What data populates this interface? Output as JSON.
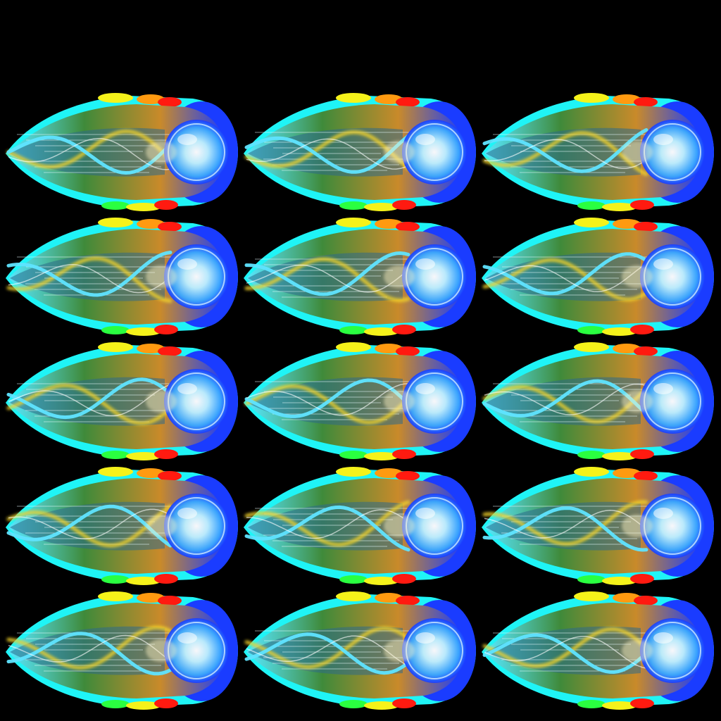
{
  "spritesheet": {
    "columns": 3,
    "rows": 5,
    "frame_count": 15,
    "subject": "energy-orb-projectile",
    "background_color": "#000000",
    "colors": {
      "outer_cyan": "#1ff4f6",
      "rim_yellow": "#f5f21a",
      "rim_orange": "#ff9a10",
      "rim_red": "#ff1a10",
      "rim_green": "#2aff40",
      "orb_blue": "#1a3cff",
      "orb_core": "#bff1ff",
      "body_green": "#3f8a3a",
      "body_orange": "#c98a2a",
      "ribbon_cyan": "#5fe4ff",
      "ribbon_yellow": "#f2d22a",
      "streak_white": "#e8fbff"
    },
    "frames": [
      {
        "index": 1,
        "ribbon_phase": 0.0
      },
      {
        "index": 2,
        "ribbon_phase": 0.42
      },
      {
        "index": 3,
        "ribbon_phase": 0.84
      },
      {
        "index": 4,
        "ribbon_phase": 1.26
      },
      {
        "index": 5,
        "ribbon_phase": 1.68
      },
      {
        "index": 6,
        "ribbon_phase": 2.1
      },
      {
        "index": 7,
        "ribbon_phase": 2.52
      },
      {
        "index": 8,
        "ribbon_phase": 2.94
      },
      {
        "index": 9,
        "ribbon_phase": 3.36
      },
      {
        "index": 10,
        "ribbon_phase": 3.78
      },
      {
        "index": 11,
        "ribbon_phase": 4.2
      },
      {
        "index": 12,
        "ribbon_phase": 4.62
      },
      {
        "index": 13,
        "ribbon_phase": 5.04
      },
      {
        "index": 14,
        "ribbon_phase": 5.46
      },
      {
        "index": 15,
        "ribbon_phase": 5.88
      }
    ]
  }
}
